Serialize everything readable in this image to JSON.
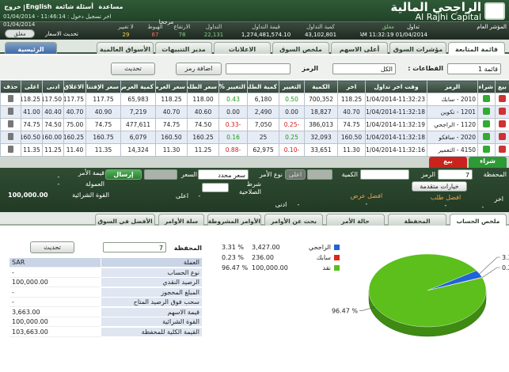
{
  "header": {
    "logo_ar": "الراجحي المالية",
    "logo_en": "Al Rajhi Capital",
    "links": [
      "مساعدة",
      "أسئلة شائعة",
      "English",
      "خروج"
    ],
    "last_login": "اخر تسجيل دخول : 11:46:14 - 01/04/2014",
    "date": "01/04/2014"
  },
  "market_bar": {
    "index_label": "المؤشر العام",
    "trading_label": "تداول",
    "status": "مغلق",
    "time": "AM 11:32:19 01/04/2014",
    "weighted": "مرجحا",
    "stats": [
      {
        "label": "كمية التداول",
        "value": "43,102,801",
        "color": "#ffffff"
      },
      {
        "label": "قيمة التداول",
        "value": "1,274,481,574.10",
        "color": "#ffffff"
      },
      {
        "label": "التداول",
        "value": "22,131",
        "color": "#7fd37f"
      },
      {
        "label": "الارتفاع",
        "value": "78",
        "color": "#7fd37f"
      },
      {
        "label": "الهبوط",
        "value": "67",
        "color": "#ff6b5b"
      },
      {
        "label": "لا تغيير",
        "value": "29",
        "color": "#f3d34a"
      }
    ],
    "refresh_label": "تحديث الاسعار",
    "toggle": "مغلق"
  },
  "tabs": {
    "items": [
      "قائمة المتابعة",
      "مؤشرات السوق",
      "أعلى الاسهم",
      "ملخص السوق",
      "الاعلانات",
      "مدير التنبيهات",
      "الأسواق العالمية"
    ],
    "home": "الرئيسية"
  },
  "watchlist": {
    "list": "قائمة 1",
    "sectors_label": "القطاعات :",
    "sector": "الكل",
    "symbol_label": "الرمز",
    "add_symbol": "اضافة رمز",
    "refresh": "تحديث",
    "columns": [
      "بيع",
      "شراء",
      "الرمز",
      "وقت اخر تداول",
      "اخر",
      "الكمية",
      "التغيير",
      "كمية الطلب",
      "التغيير %",
      "سعر الطلب",
      "سعر العرض",
      "كمية العرض",
      "سعر الإفتتاح",
      "الاغلاق",
      "ادنى",
      "اعلى",
      "حذف"
    ],
    "rows": [
      [
        "2010 - سابك",
        "01/04/2014-11:32:23",
        "118.25",
        "700,352",
        "0.50",
        "6,180",
        "0.43",
        "118.00",
        "118.25",
        "65,983",
        "117.75",
        "117.75",
        "117.50",
        "118.25"
      ],
      [
        "1201 - تكوين",
        "01/04/2014-11:32:18",
        "40.70",
        "18,827",
        "0.00",
        "2,490",
        "0.00",
        "40.60",
        "40.70",
        "7,219",
        "40.90",
        "40.70",
        "40.40",
        "41.00"
      ],
      [
        "1120 - الراجحي",
        "01/04/2014-11:32:19",
        "74.75",
        "386,013",
        "-0.25",
        "7,050",
        "-0.33",
        "74.50",
        "74.75",
        "477,611",
        "74.75",
        "75.00",
        "74.50",
        "74.75"
      ],
      [
        "2020 - سافكو",
        "01/04/2014-11:32:18",
        "160.50",
        "32,093",
        "0.25",
        "25",
        "0.16",
        "160.25",
        "160.50",
        "6,079",
        "160.75",
        "160.25",
        "160.00",
        "160.50"
      ],
      [
        "4150 - التعمير",
        "01/04/2014-11:32:16",
        "11.30",
        "33,651",
        "-0.10",
        "62,975",
        "-0.88",
        "11.25",
        "11.30",
        "14,324",
        "11.35",
        "11.40",
        "11.25",
        "11.35"
      ]
    ]
  },
  "order": {
    "buy": "شراء",
    "sell": "بيع",
    "portfolio_label": "المحفظة",
    "portfolio": "7",
    "symbol_label": "الرمز",
    "qty_label": "الكمية",
    "high_btn": "اعلى",
    "type_label": "نوع الأمر",
    "type": "سعر محدد",
    "price_label": "السعر",
    "send": "إرسال",
    "order_value_label": "قيمة الأمر",
    "order_value": "-",
    "commission_label": "العمولة",
    "commission": "-",
    "buying_power_label": "القوة الشرائية",
    "buying_power": "100,000.00",
    "validity_label": "شرط الصلاحية",
    "advanced": "خيارات متقدمة",
    "best_bid_label": "افضل طلب",
    "best_bid": "-",
    "best_ask_label": "افضل عرض",
    "best_ask": "-",
    "last_label": "اخر",
    "last": "-",
    "low_label": "ادنى",
    "low": "-",
    "high_label": "اعلى",
    "high": "-"
  },
  "bottom_tabs": [
    "ملخص الحساب",
    "المحفظة",
    "حالة الأمر",
    "بحث عن الأوامر",
    "الأوامر المشروطة",
    "سلة الأوامر",
    "الأفضل في السوق"
  ],
  "account": {
    "portfolio_label": "المحفظة",
    "portfolio": "7",
    "refresh": "تحديث",
    "rows": [
      [
        "العملة",
        "SAR"
      ],
      [
        "نوع الحساب",
        "-"
      ],
      [
        "الرصيد النقدي",
        "100,000.00"
      ],
      [
        "المبلغ المحجوز",
        "-"
      ],
      [
        "سحب فوق الرصيد المتاح",
        "-"
      ],
      [
        "قيمة الاسهم",
        "3,663.00"
      ],
      [
        "القوة الشرائية",
        "100,000.00"
      ],
      [
        "القيمة الكلية للمحفظة",
        "103,663.00"
      ]
    ]
  },
  "holdings": [
    {
      "name": "الراجحي",
      "value": "3,427.00",
      "pct": "% 3.31"
    },
    {
      "name": "سابك",
      "value": "236.00",
      "pct": "% 0.23"
    },
    {
      "name": "نقد",
      "value": "100,000.00",
      "pct": "% 96.47"
    }
  ],
  "pie": {
    "values": [
      3.31,
      0.23,
      96.47
    ],
    "labels": [
      "3.31 %",
      "0.23 %",
      "96.47 %"
    ],
    "colors": [
      "#1f63d8",
      "#e0261b",
      "#5cbf1c"
    ]
  }
}
